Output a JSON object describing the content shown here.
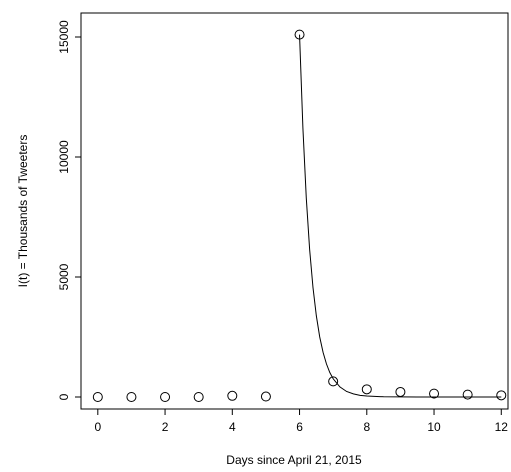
{
  "chart_data": {
    "type": "scatter",
    "title": "",
    "xlabel": "Days since April 21, 2015",
    "ylabel": "I(t) = Thousands of Tweeters",
    "xlim": [
      -0.5,
      12.2
    ],
    "ylim": [
      -500,
      16000
    ],
    "xticks": [
      0,
      2,
      4,
      6,
      8,
      10,
      12
    ],
    "yticks": [
      0,
      5000,
      10000,
      15000
    ],
    "grid": false,
    "series": [
      {
        "style": "points",
        "x": [
          0,
          1,
          2,
          3,
          4,
          5,
          6,
          7,
          8,
          9,
          10,
          11,
          12
        ],
        "y": [
          0,
          0,
          0,
          0,
          50,
          20,
          15100,
          650,
          320,
          210,
          140,
          100,
          70
        ]
      },
      {
        "style": "line",
        "x": [
          6.0,
          6.1,
          6.2,
          6.3,
          6.4,
          6.5,
          6.6,
          6.7,
          6.8,
          6.9,
          7.0,
          7.2,
          7.4,
          7.6,
          7.8,
          8.0,
          8.5,
          9.0,
          9.5,
          10.0,
          11.0,
          12.0
        ],
        "y": [
          15100,
          11200,
          8300,
          6150,
          4560,
          3380,
          2500,
          1860,
          1380,
          1020,
          760,
          420,
          230,
          130,
          70,
          40,
          10,
          3,
          1,
          0,
          0,
          0
        ]
      }
    ]
  }
}
